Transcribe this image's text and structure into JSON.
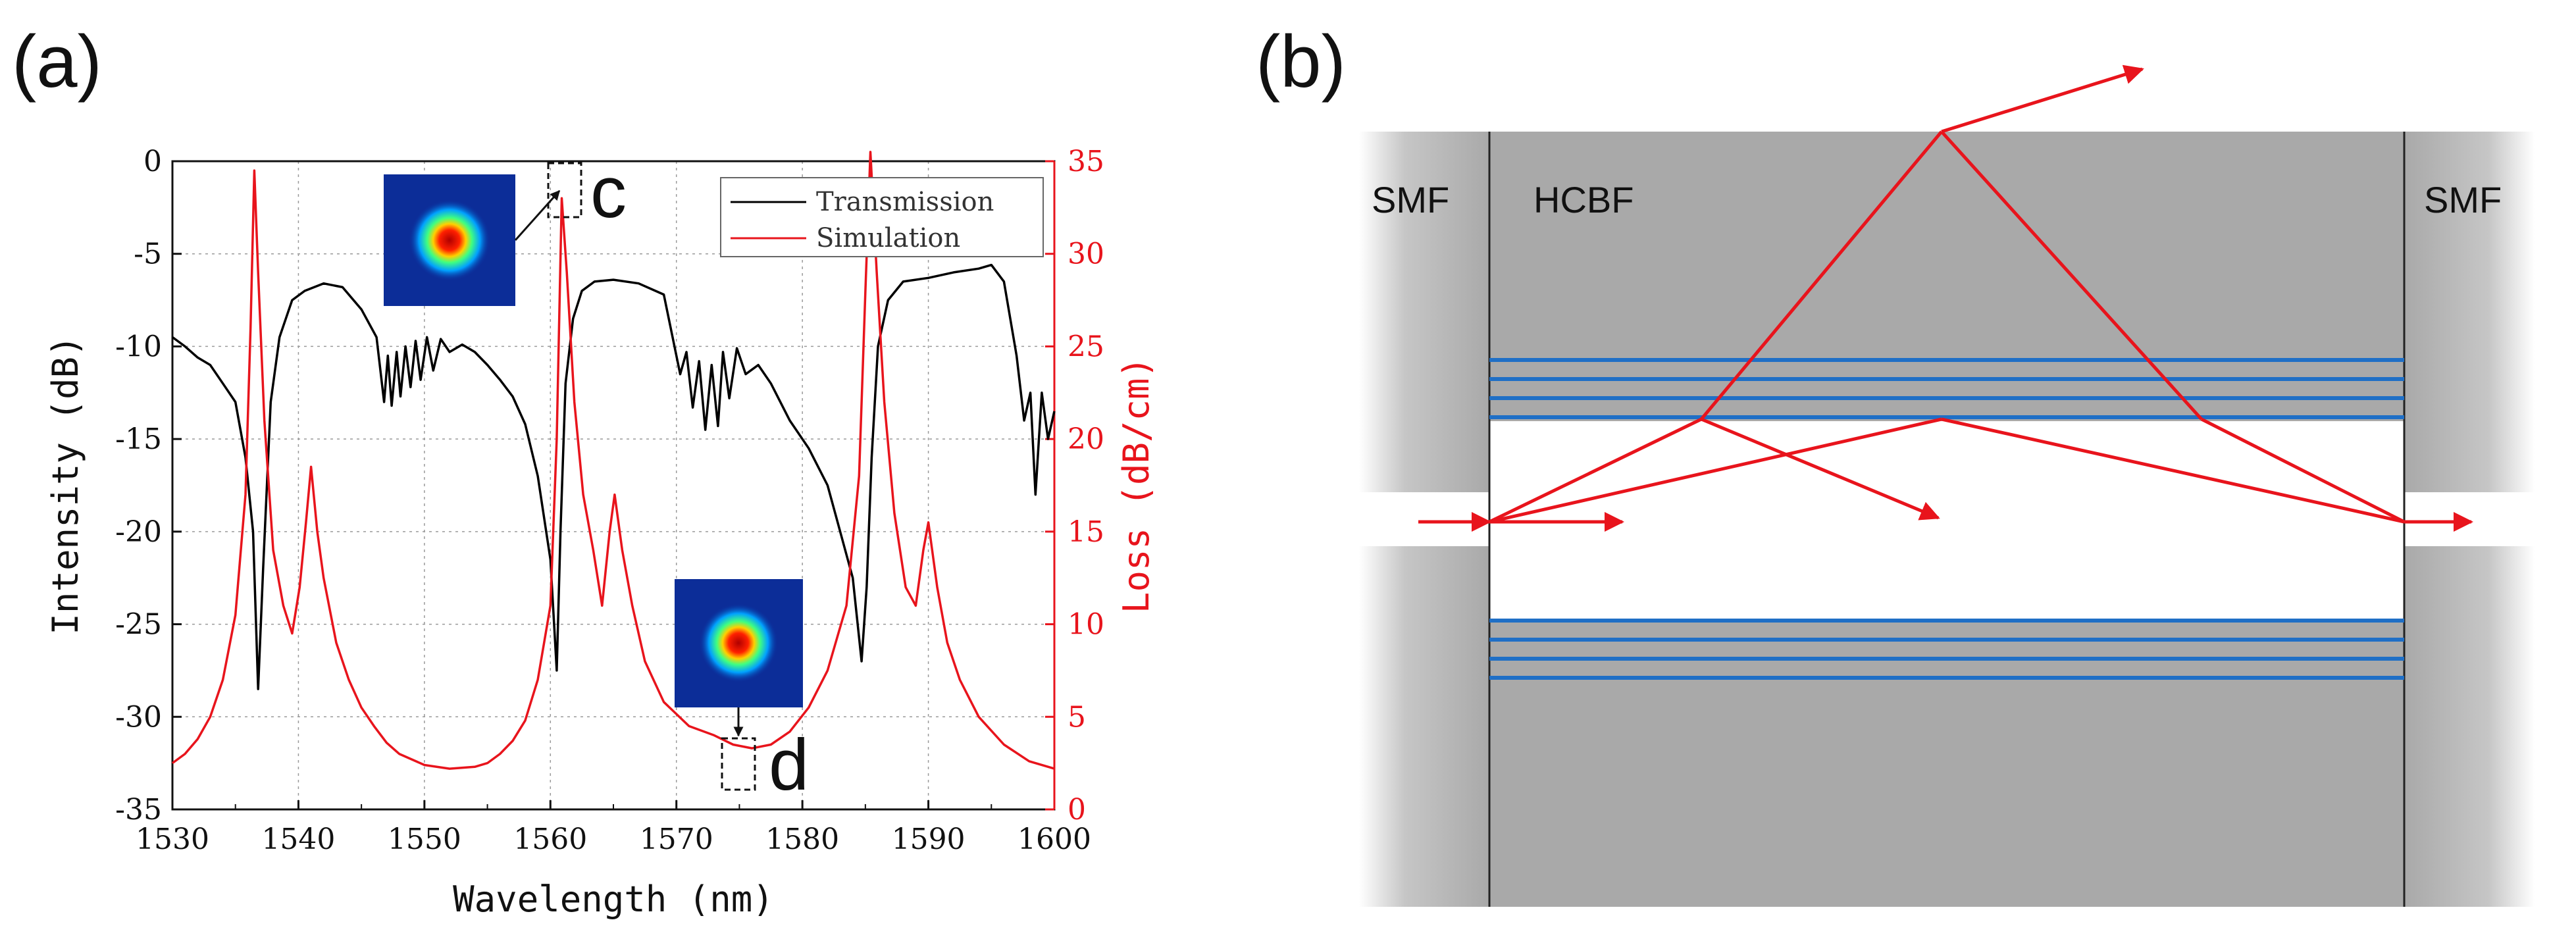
{
  "panel_a": {
    "label": "(a)"
  },
  "panel_b": {
    "label": "(b)",
    "fiber_labels": {
      "left": "SMF",
      "middle": "HCBF",
      "right": "SMF"
    }
  },
  "insets": {
    "c": "c",
    "d": "d"
  },
  "colors": {
    "transmission": "#000000",
    "simulation": "#e8141c",
    "cladding_layer": "#1f6fc6",
    "ray": "#e8141c",
    "fiber_gray": "#a9a9a9"
  },
  "chart_data": {
    "type": "line",
    "title": "",
    "xlabel": "Wavelength (nm)",
    "ylabel": "Intensity (dB)",
    "y2label": "Loss (dB/cm)",
    "xlim": [
      1530,
      1600
    ],
    "ylim": [
      -35,
      0
    ],
    "y2lim": [
      0,
      35
    ],
    "x_ticks": [
      1530,
      1540,
      1550,
      1560,
      1570,
      1580,
      1590,
      1600
    ],
    "y_ticks": [
      0,
      -5,
      -10,
      -15,
      -20,
      -25,
      -30,
      -35
    ],
    "y2_ticks": [
      35,
      30,
      25,
      20,
      15,
      10,
      5,
      0
    ],
    "legend": [
      "Transmission",
      "Simulation"
    ],
    "series": [
      {
        "name": "Transmission",
        "axis": "left",
        "x": [
          1530,
          1531,
          1532,
          1533,
          1534,
          1535,
          1535.8,
          1536.4,
          1536.8,
          1537.2,
          1537.8,
          1538.5,
          1539.5,
          1540.5,
          1542,
          1543.5,
          1545,
          1546.2,
          1546.8,
          1547.1,
          1547.4,
          1547.8,
          1548.1,
          1548.5,
          1548.9,
          1549.3,
          1549.7,
          1550.2,
          1550.7,
          1551.3,
          1552,
          1553,
          1554,
          1555,
          1556,
          1557,
          1558,
          1559,
          1560,
          1560.5,
          1560.8,
          1561.2,
          1561.8,
          1562.5,
          1563.5,
          1565,
          1567,
          1569,
          1570.3,
          1570.8,
          1571.3,
          1571.8,
          1572.3,
          1572.8,
          1573.3,
          1573.7,
          1574.2,
          1574.8,
          1575.5,
          1576.5,
          1577.5,
          1579,
          1580.5,
          1582,
          1583,
          1584,
          1584.7,
          1585.1,
          1585.5,
          1586,
          1586.8,
          1588,
          1590,
          1592,
          1594,
          1595,
          1596,
          1597,
          1597.6,
          1598.1,
          1598.5,
          1599,
          1599.5,
          1600
        ],
        "y": [
          -9.5,
          -10,
          -10.6,
          -11,
          -12,
          -13,
          -16,
          -20,
          -28.5,
          -22,
          -13,
          -9.5,
          -7.5,
          -7,
          -6.6,
          -6.8,
          -8,
          -9.5,
          -13,
          -10.5,
          -13.2,
          -10.3,
          -12.7,
          -10,
          -12.2,
          -9.7,
          -11.8,
          -9.5,
          -11.3,
          -9.6,
          -10.3,
          -9.9,
          -10.3,
          -11,
          -11.8,
          -12.7,
          -14.2,
          -17,
          -21.5,
          -27.5,
          -20,
          -12,
          -8.5,
          -7,
          -6.5,
          -6.4,
          -6.6,
          -7.2,
          -11.5,
          -10.3,
          -13.3,
          -10.8,
          -14.5,
          -11,
          -14.3,
          -10.3,
          -12.8,
          -10.1,
          -11.5,
          -11,
          -12,
          -14,
          -15.5,
          -17.5,
          -20,
          -22.5,
          -27,
          -23,
          -16,
          -10,
          -7.5,
          -6.5,
          -6.3,
          -6,
          -5.8,
          -5.6,
          -6.5,
          -10.5,
          -14,
          -12.5,
          -18,
          -12.5,
          -15,
          -13.5
        ]
      },
      {
        "name": "Simulation",
        "axis": "right",
        "x": [
          1530,
          1531,
          1532,
          1533,
          1534,
          1535,
          1535.8,
          1536.2,
          1536.5,
          1536.8,
          1537.3,
          1538,
          1538.8,
          1539.5,
          1540.1,
          1540.6,
          1541,
          1541.5,
          1542,
          1543,
          1544,
          1545,
          1546,
          1547,
          1548,
          1550,
          1552,
          1554,
          1555,
          1556,
          1557,
          1558,
          1559,
          1560,
          1560.5,
          1560.9,
          1561.3,
          1561.9,
          1562.6,
          1563.4,
          1564.1,
          1564.7,
          1565.1,
          1565.7,
          1566.5,
          1567.5,
          1569,
          1571,
          1573,
          1574.5,
          1576,
          1577.5,
          1579,
          1580.5,
          1582,
          1583.5,
          1584.5,
          1585,
          1585.4,
          1585.9,
          1586.5,
          1587.3,
          1588.2,
          1589,
          1589.6,
          1590,
          1590.7,
          1591.5,
          1592.5,
          1594,
          1596,
          1598,
          1600
        ],
        "y": [
          2.5,
          3,
          3.8,
          5,
          7,
          10.5,
          17,
          26,
          34.5,
          29,
          21,
          14,
          11,
          9.5,
          12,
          15.5,
          18.5,
          15,
          12.5,
          9,
          7,
          5.5,
          4.5,
          3.6,
          3,
          2.4,
          2.2,
          2.3,
          2.5,
          3,
          3.7,
          4.8,
          7,
          11,
          20,
          33,
          29,
          22,
          17,
          14,
          11,
          15,
          17,
          14,
          11,
          8,
          5.8,
          4.5,
          4,
          3.5,
          3.3,
          3.5,
          4.2,
          5.5,
          7.5,
          11,
          18,
          28,
          35.5,
          29,
          22,
          16,
          12,
          11,
          14,
          15.5,
          12,
          9,
          7,
          5,
          3.5,
          2.6,
          2.2
        ]
      }
    ]
  }
}
